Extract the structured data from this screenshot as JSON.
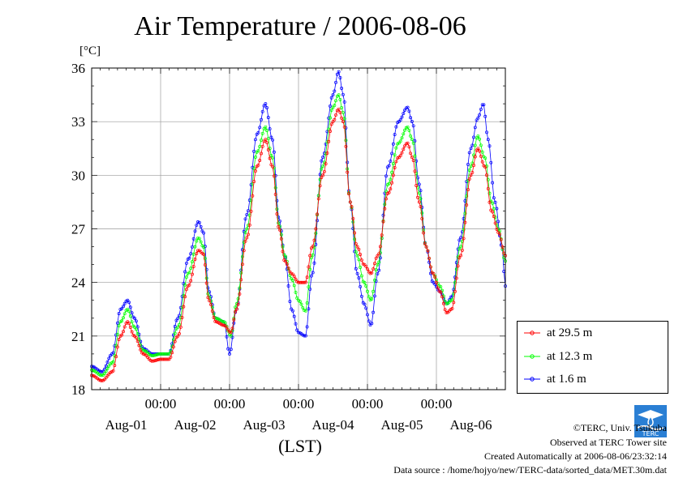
{
  "title": "Air Temperature / 2006-08-06",
  "credits": {
    "copyright": "©TERC, Univ. Tsukuba",
    "site": "Observed at TERC Tower site",
    "created": "Created Automatically at 2006-08-06/23:32:14",
    "source": "Data source : /home/hojyo/new/TERC-data/sorted_data/MET.30m.dat"
  },
  "logo_text": "TERC",
  "colors": {
    "at_29_5": "#ff0000",
    "at_12_3": "#00ff00",
    "at_1_6": "#0000ff"
  },
  "chart_data": {
    "type": "line",
    "title": "Air Temperature / 2006-08-06",
    "ylabel": "[°C]",
    "xlabel": "(LST)",
    "ylim": [
      18,
      36
    ],
    "yticks": [
      18,
      21,
      24,
      27,
      30,
      33,
      36
    ],
    "xlim_days": [
      0,
      6
    ],
    "time_tick_labels": [
      "00:00",
      "00:00",
      "00:00",
      "00:00",
      "00:00"
    ],
    "date_labels": [
      "Aug-01",
      "Aug-02",
      "Aug-03",
      "Aug-04",
      "Aug-05",
      "Aug-06"
    ],
    "grid": true,
    "legend_position": "right",
    "series": [
      {
        "name": "at 29.5 m",
        "color": "#ff0000",
        "points": [
          [
            0.0,
            18.8
          ],
          [
            0.15,
            18.5
          ],
          [
            0.3,
            19.0
          ],
          [
            0.42,
            21.0
          ],
          [
            0.52,
            21.8
          ],
          [
            0.62,
            21.0
          ],
          [
            0.75,
            20.0
          ],
          [
            0.88,
            19.6
          ],
          [
            1.0,
            19.7
          ],
          [
            1.12,
            19.7
          ],
          [
            1.25,
            21.0
          ],
          [
            1.4,
            23.8
          ],
          [
            1.55,
            25.8
          ],
          [
            1.62,
            25.6
          ],
          [
            1.7,
            23.0
          ],
          [
            1.8,
            21.8
          ],
          [
            1.92,
            21.6
          ],
          [
            2.02,
            21.2
          ],
          [
            2.1,
            22.5
          ],
          [
            2.25,
            26.5
          ],
          [
            2.4,
            30.5
          ],
          [
            2.52,
            32.0
          ],
          [
            2.62,
            30.5
          ],
          [
            2.72,
            27.0
          ],
          [
            2.8,
            25.2
          ],
          [
            2.9,
            24.5
          ],
          [
            3.0,
            24.0
          ],
          [
            3.1,
            24.0
          ],
          [
            3.2,
            26.0
          ],
          [
            3.35,
            30.0
          ],
          [
            3.5,
            33.0
          ],
          [
            3.58,
            33.7
          ],
          [
            3.65,
            33.0
          ],
          [
            3.75,
            28.5
          ],
          [
            3.85,
            26.0
          ],
          [
            3.95,
            25.0
          ],
          [
            4.05,
            24.5
          ],
          [
            4.15,
            25.5
          ],
          [
            4.3,
            29.0
          ],
          [
            4.45,
            31.0
          ],
          [
            4.58,
            31.8
          ],
          [
            4.65,
            31.0
          ],
          [
            4.75,
            28.5
          ],
          [
            4.85,
            26.0
          ],
          [
            4.95,
            24.5
          ],
          [
            5.05,
            23.5
          ],
          [
            5.15,
            22.3
          ],
          [
            5.22,
            22.5
          ],
          [
            5.35,
            25.5
          ],
          [
            5.5,
            30.0
          ],
          [
            5.6,
            31.5
          ],
          [
            5.7,
            30.5
          ],
          [
            5.8,
            28.0
          ],
          [
            5.9,
            26.8
          ],
          [
            6.0,
            25.5
          ]
        ]
      },
      {
        "name": "at 12.3 m",
        "color": "#00ff00",
        "points": [
          [
            0.0,
            19.1
          ],
          [
            0.15,
            18.8
          ],
          [
            0.3,
            19.5
          ],
          [
            0.42,
            21.8
          ],
          [
            0.52,
            22.5
          ],
          [
            0.62,
            21.5
          ],
          [
            0.75,
            20.2
          ],
          [
            0.88,
            19.9
          ],
          [
            1.0,
            20.0
          ],
          [
            1.12,
            20.0
          ],
          [
            1.25,
            21.5
          ],
          [
            1.4,
            24.5
          ],
          [
            1.55,
            26.5
          ],
          [
            1.62,
            26.0
          ],
          [
            1.7,
            23.2
          ],
          [
            1.8,
            22.0
          ],
          [
            1.92,
            21.8
          ],
          [
            2.02,
            21.0
          ],
          [
            2.1,
            22.8
          ],
          [
            2.25,
            27.0
          ],
          [
            2.4,
            31.3
          ],
          [
            2.52,
            32.7
          ],
          [
            2.62,
            31.0
          ],
          [
            2.72,
            27.2
          ],
          [
            2.8,
            25.5
          ],
          [
            2.9,
            24.2
          ],
          [
            3.0,
            23.0
          ],
          [
            3.1,
            22.4
          ],
          [
            3.2,
            25.5
          ],
          [
            3.35,
            30.5
          ],
          [
            3.5,
            33.8
          ],
          [
            3.58,
            34.5
          ],
          [
            3.65,
            33.5
          ],
          [
            3.75,
            28.5
          ],
          [
            3.85,
            25.5
          ],
          [
            3.95,
            24.0
          ],
          [
            4.05,
            23.0
          ],
          [
            4.15,
            25.0
          ],
          [
            4.3,
            29.5
          ],
          [
            4.45,
            31.8
          ],
          [
            4.58,
            32.7
          ],
          [
            4.65,
            32.0
          ],
          [
            4.75,
            29.0
          ],
          [
            4.85,
            26.0
          ],
          [
            4.95,
            24.5
          ],
          [
            5.05,
            23.8
          ],
          [
            5.15,
            22.8
          ],
          [
            5.22,
            23.0
          ],
          [
            5.35,
            26.0
          ],
          [
            5.5,
            30.5
          ],
          [
            5.6,
            32.2
          ],
          [
            5.7,
            31.0
          ],
          [
            5.8,
            28.5
          ],
          [
            5.9,
            27.0
          ],
          [
            6.0,
            25.2
          ]
        ]
      },
      {
        "name": "at 1.6 m",
        "color": "#0000ff",
        "points": [
          [
            0.0,
            19.3
          ],
          [
            0.15,
            19.0
          ],
          [
            0.3,
            20.0
          ],
          [
            0.42,
            22.5
          ],
          [
            0.52,
            23.0
          ],
          [
            0.62,
            22.0
          ],
          [
            0.75,
            20.3
          ],
          [
            0.88,
            20.0
          ],
          [
            1.0,
            20.0
          ],
          [
            1.12,
            20.0
          ],
          [
            1.25,
            22.0
          ],
          [
            1.4,
            25.3
          ],
          [
            1.55,
            27.4
          ],
          [
            1.62,
            26.8
          ],
          [
            1.7,
            23.5
          ],
          [
            1.8,
            22.0
          ],
          [
            1.92,
            21.8
          ],
          [
            2.0,
            20.0
          ],
          [
            2.1,
            22.5
          ],
          [
            2.25,
            27.8
          ],
          [
            2.4,
            32.3
          ],
          [
            2.52,
            34.0
          ],
          [
            2.62,
            32.0
          ],
          [
            2.72,
            27.5
          ],
          [
            2.8,
            25.5
          ],
          [
            2.9,
            22.5
          ],
          [
            3.0,
            21.2
          ],
          [
            3.1,
            21.0
          ],
          [
            3.2,
            24.5
          ],
          [
            3.35,
            31.0
          ],
          [
            3.5,
            34.5
          ],
          [
            3.58,
            35.8
          ],
          [
            3.65,
            34.5
          ],
          [
            3.75,
            28.5
          ],
          [
            3.85,
            24.5
          ],
          [
            3.95,
            22.8
          ],
          [
            4.05,
            21.6
          ],
          [
            4.15,
            24.5
          ],
          [
            4.3,
            30.5
          ],
          [
            4.45,
            33.0
          ],
          [
            4.58,
            33.8
          ],
          [
            4.65,
            33.0
          ],
          [
            4.75,
            29.5
          ],
          [
            4.85,
            26.0
          ],
          [
            4.95,
            24.0
          ],
          [
            5.05,
            23.5
          ],
          [
            5.15,
            22.8
          ],
          [
            5.22,
            23.2
          ],
          [
            5.35,
            26.5
          ],
          [
            5.5,
            31.5
          ],
          [
            5.6,
            33.2
          ],
          [
            5.68,
            34.0
          ],
          [
            5.75,
            32.0
          ],
          [
            5.85,
            28.5
          ],
          [
            5.95,
            26.0
          ],
          [
            6.0,
            23.8
          ]
        ]
      }
    ]
  }
}
